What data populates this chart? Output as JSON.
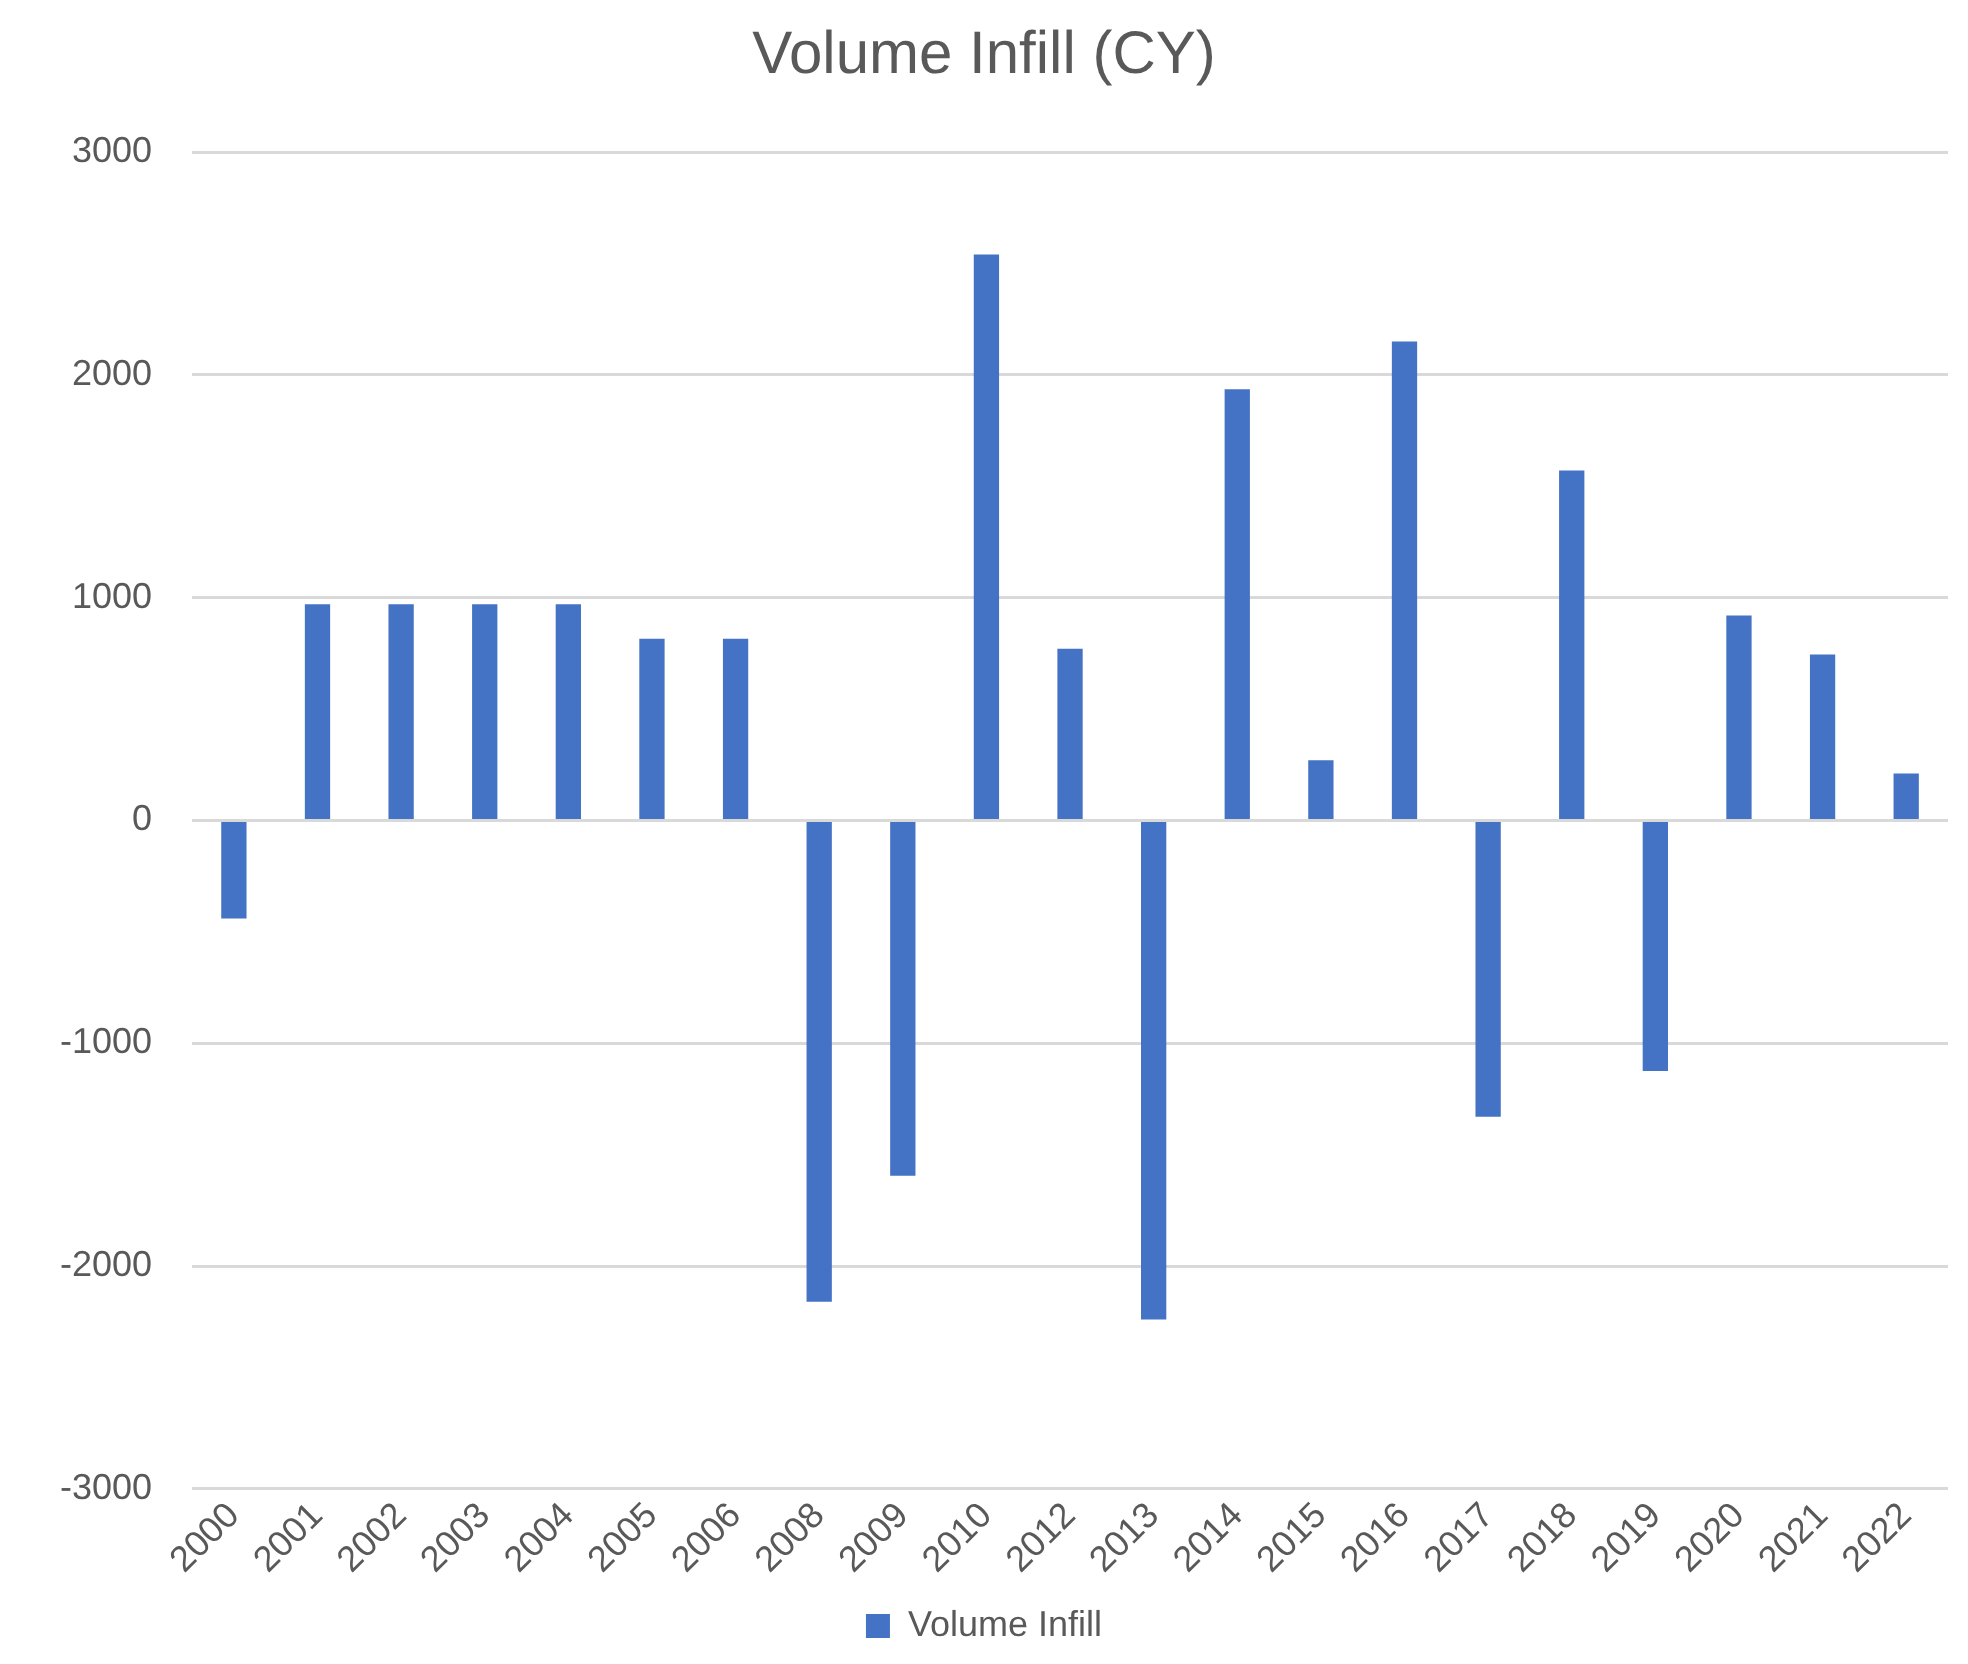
{
  "chart_data": {
    "type": "bar",
    "title": "Volume Infill (CY)",
    "categories": [
      "2000",
      "2001",
      "2002",
      "2003",
      "2004",
      "2005",
      "2006",
      "2008",
      "2009",
      "2010",
      "2012",
      "2013",
      "2014",
      "2015",
      "2016",
      "2017",
      "2018",
      "2019",
      "2020",
      "2021",
      "2022"
    ],
    "series": [
      {
        "name": "Volume Infill",
        "color": "#4472c4",
        "values": [
          -440,
          970,
          970,
          970,
          970,
          815,
          815,
          -2160,
          -1595,
          2540,
          770,
          -2240,
          1935,
          270,
          2150,
          -1330,
          1570,
          -1125,
          920,
          745,
          210
        ]
      }
    ],
    "ylim": [
      -3000,
      3000
    ],
    "yticks": [
      -3000,
      -2000,
      -1000,
      0,
      1000,
      2000,
      3000
    ],
    "grid": "y",
    "legend": "bottom"
  }
}
